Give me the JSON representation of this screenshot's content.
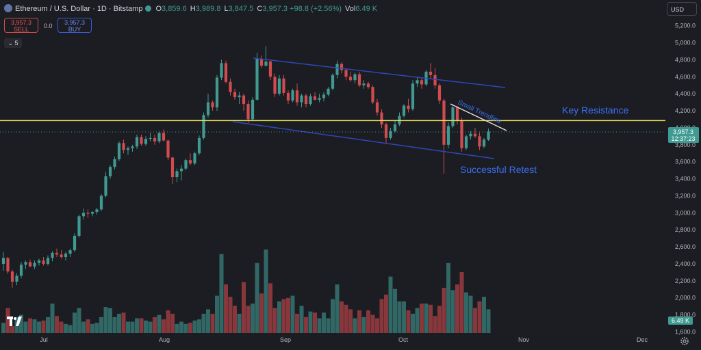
{
  "header": {
    "title": "Ethereum / U.S. Dollar · 1D · Bitstamp",
    "open_label": "O",
    "open": "3,859.6",
    "high_label": "H",
    "high": "3,989.8",
    "low_label": "L",
    "low": "3,847.5",
    "close_label": "C",
    "close": "3,957.3",
    "change": "+98.8 (+2.56%)",
    "vol_label": "Vol",
    "vol": "6.49 K"
  },
  "trade": {
    "sell_price": "3,957.3",
    "sell_label": "SELL",
    "spread": "0.0",
    "buy_price": "3,957.3",
    "buy_label": "BUY"
  },
  "indicators_toggle": "5",
  "currency": "USD",
  "colors": {
    "background": "#1c1d22",
    "up": "#3f9a92",
    "down": "#d14b4f",
    "resistance": "#e7e35a",
    "channel": "#2f47b8",
    "annotation": "#3b6ff5"
  },
  "chart_data": {
    "type": "candlestick",
    "ylim": [
      1600,
      5400
    ],
    "y_ticks": [
      "5,200.0",
      "5,000.0",
      "4,800.0",
      "4,600.0",
      "4,400.0",
      "4,200.0",
      "4,000.0",
      "3,800.0",
      "3,600.0",
      "3,400.0",
      "3,200.0",
      "3,000.0",
      "2,800.0",
      "2,600.0",
      "2,400.0",
      "2,200.0",
      "2,000.0",
      "1,800.0",
      "1,600.0"
    ],
    "x_ticks": [
      "Jul",
      "Aug",
      "Sep",
      "Oct",
      "Nov",
      "Dec"
    ],
    "current_price": "3,957.3",
    "countdown": "12:37:23",
    "volume_label": "6.49 K",
    "annotations": {
      "resistance_label": "Key Resistance",
      "retest_label": "Successful Retest",
      "trendline_label": "Small Trendline"
    },
    "candles": [
      [
        2400,
        2540,
        2320,
        2470
      ],
      [
        2470,
        2480,
        2280,
        2310
      ],
      [
        2310,
        2330,
        2120,
        2190
      ],
      [
        2190,
        2290,
        2150,
        2260
      ],
      [
        2260,
        2420,
        2230,
        2390
      ],
      [
        2390,
        2440,
        2340,
        2420
      ],
      [
        2420,
        2450,
        2360,
        2370
      ],
      [
        2370,
        2440,
        2340,
        2410
      ],
      [
        2410,
        2460,
        2380,
        2440
      ],
      [
        2440,
        2480,
        2380,
        2400
      ],
      [
        2400,
        2500,
        2380,
        2470
      ],
      [
        2470,
        2550,
        2430,
        2530
      ],
      [
        2530,
        2580,
        2480,
        2510
      ],
      [
        2510,
        2560,
        2460,
        2480
      ],
      [
        2480,
        2540,
        2440,
        2520
      ],
      [
        2520,
        2580,
        2480,
        2560
      ],
      [
        2560,
        2760,
        2540,
        2730
      ],
      [
        2730,
        2980,
        2710,
        2960
      ],
      [
        2960,
        3050,
        2920,
        3000
      ],
      [
        3000,
        3040,
        2940,
        2990
      ],
      [
        2990,
        3020,
        2960,
        3010
      ],
      [
        3010,
        3060,
        2980,
        3040
      ],
      [
        3040,
        3220,
        3020,
        3200
      ],
      [
        3200,
        3480,
        3180,
        3430
      ],
      [
        3430,
        3560,
        3400,
        3540
      ],
      [
        3540,
        3660,
        3510,
        3630
      ],
      [
        3630,
        3840,
        3610,
        3820
      ],
      [
        3820,
        3860,
        3700,
        3740
      ],
      [
        3740,
        3780,
        3680,
        3760
      ],
      [
        3760,
        3800,
        3720,
        3780
      ],
      [
        3780,
        3920,
        3750,
        3890
      ],
      [
        3890,
        3920,
        3790,
        3810
      ],
      [
        3810,
        3900,
        3790,
        3870
      ],
      [
        3870,
        3940,
        3840,
        3880
      ],
      [
        3880,
        3920,
        3800,
        3840
      ],
      [
        3840,
        3960,
        3820,
        3940
      ],
      [
        3940,
        3980,
        3840,
        3850
      ],
      [
        3850,
        3860,
        3620,
        3650
      ],
      [
        3650,
        3660,
        3340,
        3420
      ],
      [
        3420,
        3520,
        3360,
        3490
      ],
      [
        3490,
        3560,
        3380,
        3520
      ],
      [
        3520,
        3640,
        3500,
        3620
      ],
      [
        3620,
        3700,
        3560,
        3580
      ],
      [
        3580,
        3720,
        3560,
        3700
      ],
      [
        3700,
        3910,
        3680,
        3880
      ],
      [
        3880,
        4180,
        3860,
        4150
      ],
      [
        4150,
        4400,
        4120,
        4300
      ],
      [
        4300,
        4320,
        4200,
        4240
      ],
      [
        4240,
        4620,
        4200,
        4590
      ],
      [
        4590,
        4800,
        4560,
        4760
      ],
      [
        4760,
        4790,
        4520,
        4540
      ],
      [
        4540,
        4580,
        4380,
        4420
      ],
      [
        4420,
        4460,
        4330,
        4360
      ],
      [
        4360,
        4420,
        4280,
        4380
      ],
      [
        4380,
        4400,
        4200,
        4280
      ],
      [
        4280,
        4320,
        4060,
        4100
      ],
      [
        4100,
        4360,
        4080,
        4330
      ],
      [
        4330,
        4880,
        4320,
        4810
      ],
      [
        4810,
        4850,
        4700,
        4730
      ],
      [
        4730,
        4960,
        4720,
        4780
      ],
      [
        4780,
        4790,
        4560,
        4600
      ],
      [
        4600,
        4640,
        4360,
        4400
      ],
      [
        4400,
        4620,
        4380,
        4580
      ],
      [
        4580,
        4620,
        4380,
        4410
      ],
      [
        4410,
        4440,
        4280,
        4320
      ],
      [
        4320,
        4460,
        4300,
        4440
      ],
      [
        4440,
        4520,
        4260,
        4300
      ],
      [
        4300,
        4400,
        4240,
        4380
      ],
      [
        4380,
        4400,
        4240,
        4280
      ],
      [
        4280,
        4400,
        4260,
        4370
      ],
      [
        4370,
        4420,
        4320,
        4330
      ],
      [
        4330,
        4400,
        4300,
        4350
      ],
      [
        4350,
        4420,
        4310,
        4390
      ],
      [
        4390,
        4480,
        4370,
        4460
      ],
      [
        4460,
        4640,
        4440,
        4620
      ],
      [
        4620,
        4790,
        4580,
        4750
      ],
      [
        4750,
        4770,
        4640,
        4680
      ],
      [
        4680,
        4700,
        4560,
        4600
      ],
      [
        4600,
        4660,
        4540,
        4560
      ],
      [
        4560,
        4650,
        4520,
        4630
      ],
      [
        4630,
        4660,
        4480,
        4500
      ],
      [
        4500,
        4560,
        4460,
        4520
      ],
      [
        4520,
        4540,
        4460,
        4480
      ],
      [
        4480,
        4500,
        4280,
        4300
      ],
      [
        4300,
        4340,
        4140,
        4180
      ],
      [
        4180,
        4220,
        4000,
        4040
      ],
      [
        4040,
        4060,
        3820,
        3880
      ],
      [
        3880,
        4000,
        3860,
        3960
      ],
      [
        3960,
        4080,
        3940,
        4040
      ],
      [
        4040,
        4180,
        4020,
        4140
      ],
      [
        4140,
        4280,
        4120,
        4260
      ],
      [
        4260,
        4340,
        4180,
        4220
      ],
      [
        4220,
        4560,
        4200,
        4520
      ],
      [
        4520,
        4600,
        4480,
        4560
      ],
      [
        4560,
        4580,
        4460,
        4510
      ],
      [
        4510,
        4680,
        4490,
        4660
      ],
      [
        4660,
        4760,
        4580,
        4620
      ],
      [
        4620,
        4700,
        4460,
        4500
      ],
      [
        4500,
        4520,
        4280,
        4320
      ],
      [
        4320,
        4340,
        3460,
        3800
      ],
      [
        3800,
        4060,
        3760,
        4020
      ],
      [
        4020,
        4280,
        4000,
        4240
      ],
      [
        4240,
        4260,
        4040,
        4080
      ],
      [
        4080,
        4120,
        3720,
        3760
      ],
      [
        3760,
        3920,
        3740,
        3900
      ],
      [
        3900,
        3960,
        3860,
        3930
      ],
      [
        3930,
        4000,
        3880,
        3900
      ],
      [
        3900,
        3940,
        3740,
        3780
      ],
      [
        3780,
        3880,
        3760,
        3860
      ],
      [
        3860,
        3990,
        3847,
        3957
      ]
    ],
    "volumes": [
      0.09,
      0.22,
      0.06,
      0.14,
      0.16,
      0.1,
      0.13,
      0.12,
      0.1,
      0.11,
      0.14,
      0.26,
      0.15,
      0.1,
      0.08,
      0.07,
      0.18,
      0.22,
      0.1,
      0.12,
      0.08,
      0.09,
      0.14,
      0.23,
      0.22,
      0.14,
      0.17,
      0.18,
      0.1,
      0.1,
      0.13,
      0.13,
      0.11,
      0.1,
      0.14,
      0.16,
      0.12,
      0.2,
      0.17,
      0.08,
      0.1,
      0.08,
      0.09,
      0.11,
      0.12,
      0.17,
      0.21,
      0.17,
      0.33,
      0.7,
      0.43,
      0.32,
      0.24,
      0.17,
      0.45,
      0.24,
      0.26,
      0.62,
      0.35,
      0.74,
      0.44,
      0.22,
      0.28,
      0.3,
      0.31,
      0.33,
      0.17,
      0.24,
      0.14,
      0.19,
      0.18,
      0.13,
      0.18,
      0.13,
      0.3,
      0.43,
      0.28,
      0.25,
      0.21,
      0.13,
      0.2,
      0.14,
      0.2,
      0.16,
      0.13,
      0.3,
      0.34,
      0.5,
      0.39,
      0.28,
      0.28,
      0.2,
      0.17,
      0.22,
      0.26,
      0.26,
      0.25,
      0.15,
      0.24,
      0.4,
      0.62,
      0.38,
      0.43,
      0.54,
      0.36,
      0.33,
      0.22,
      0.28,
      0.32,
      0.21
    ]
  }
}
